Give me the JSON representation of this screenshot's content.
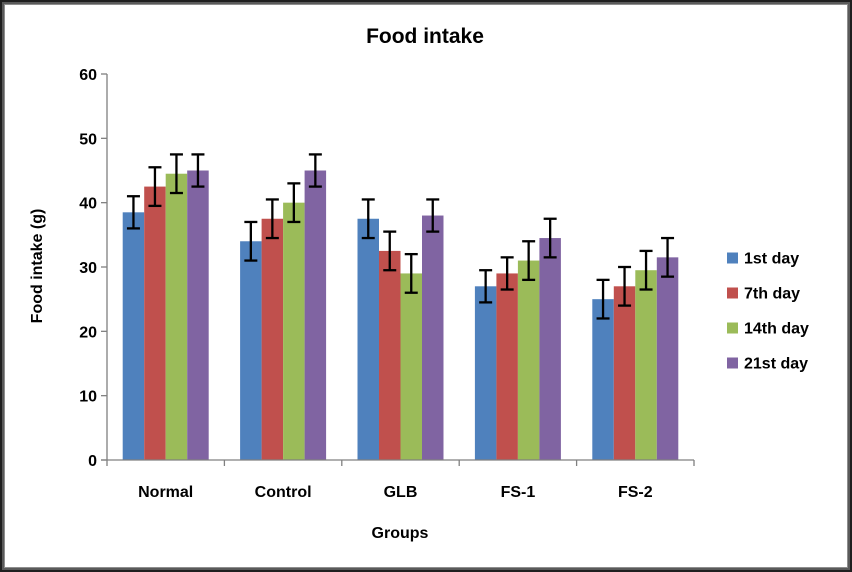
{
  "window": {
    "background": "#ffffff",
    "frame_border_color": "#2f2f2f"
  },
  "chart_data": {
    "type": "bar",
    "title": "Food intake",
    "xlabel": "Groups",
    "ylabel": "Food intake (g)",
    "ylim": [
      0,
      60
    ],
    "ytick_step": 10,
    "grid": false,
    "legend_position": "right",
    "axis_color": "#808080",
    "error_bar_color": "#000000",
    "categories": [
      "Normal",
      "Control",
      "GLB",
      "FS-1",
      "FS-2"
    ],
    "series": [
      {
        "name": "1st day",
        "color": "#4F81BD",
        "values": [
          38.5,
          34,
          37.5,
          27,
          25
        ],
        "errors": [
          2.5,
          3,
          3,
          2.5,
          3
        ]
      },
      {
        "name": "7th day",
        "color": "#C0504D",
        "values": [
          42.5,
          37.5,
          32.5,
          29,
          27
        ],
        "errors": [
          3,
          3,
          3,
          2.5,
          3
        ]
      },
      {
        "name": "14th day",
        "color": "#9BBB59",
        "values": [
          44.5,
          40,
          29,
          31,
          29.5
        ],
        "errors": [
          3,
          3,
          3,
          3,
          3
        ]
      },
      {
        "name": "21st day",
        "color": "#8064A2",
        "values": [
          45,
          45,
          38,
          34.5,
          31.5
        ],
        "errors": [
          2.5,
          2.5,
          2.5,
          3,
          3
        ]
      }
    ]
  }
}
